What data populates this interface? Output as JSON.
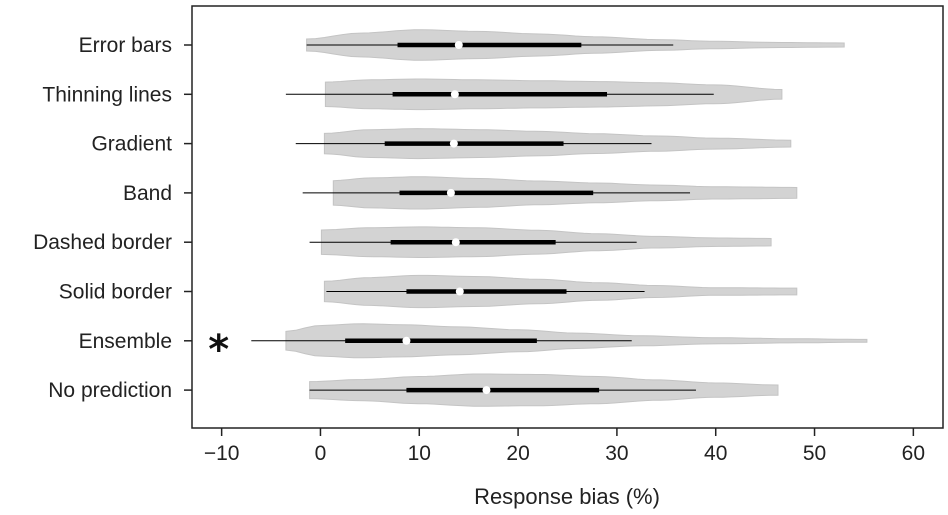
{
  "chart_data": {
    "type": "violin",
    "xlabel": "Response bias (%)",
    "xlim": [
      -13,
      63
    ],
    "xticks": [
      -10,
      0,
      10,
      20,
      30,
      40,
      50,
      60
    ],
    "grid": false,
    "colors": {
      "violin": "#d3d3d3",
      "box": "#000000",
      "median": "#ffffff"
    },
    "categories": [
      {
        "name": "Error bars",
        "min": -1.4,
        "max": 53,
        "whisker_low": -1.4,
        "q1": 7.8,
        "median": 14,
        "q3": 26.4,
        "whisker_high": 35.7,
        "profile": [
          [
            -1.4,
            0.35
          ],
          [
            4,
            0.7
          ],
          [
            10,
            0.9
          ],
          [
            16,
            0.8
          ],
          [
            22,
            0.65
          ],
          [
            28,
            0.48
          ],
          [
            34,
            0.32
          ],
          [
            40,
            0.22
          ],
          [
            46,
            0.15
          ],
          [
            53,
            0.12
          ]
        ]
      },
      {
        "name": "Thinning lines",
        "min": 0.5,
        "max": 46.7,
        "whisker_low": -3.5,
        "q1": 7.3,
        "median": 13.6,
        "q3": 29,
        "whisker_high": 39.8,
        "profile": [
          [
            0.5,
            0.72
          ],
          [
            5,
            0.85
          ],
          [
            10,
            0.9
          ],
          [
            16,
            0.85
          ],
          [
            22,
            0.8
          ],
          [
            28,
            0.75
          ],
          [
            34,
            0.68
          ],
          [
            40,
            0.55
          ],
          [
            46.7,
            0.28
          ]
        ]
      },
      {
        "name": "Gradient",
        "min": 0.4,
        "max": 47.6,
        "whisker_low": -2.5,
        "q1": 6.5,
        "median": 13.5,
        "q3": 24.6,
        "whisker_high": 33.5,
        "profile": [
          [
            0.4,
            0.6
          ],
          [
            5,
            0.82
          ],
          [
            10,
            0.88
          ],
          [
            16,
            0.82
          ],
          [
            22,
            0.72
          ],
          [
            28,
            0.58
          ],
          [
            34,
            0.45
          ],
          [
            40,
            0.32
          ],
          [
            47.6,
            0.2
          ]
        ]
      },
      {
        "name": "Band",
        "min": 1.3,
        "max": 48.2,
        "whisker_low": -1.8,
        "q1": 8,
        "median": 13.2,
        "q3": 27.6,
        "whisker_high": 37.4,
        "profile": [
          [
            1.3,
            0.72
          ],
          [
            5,
            0.88
          ],
          [
            10,
            0.95
          ],
          [
            16,
            0.85
          ],
          [
            22,
            0.7
          ],
          [
            28,
            0.58
          ],
          [
            34,
            0.46
          ],
          [
            40,
            0.36
          ],
          [
            48.2,
            0.32
          ]
        ]
      },
      {
        "name": "Dashed border",
        "min": 0.1,
        "max": 45.6,
        "whisker_low": -1.1,
        "q1": 7.1,
        "median": 13.7,
        "q3": 23.8,
        "whisker_high": 32,
        "profile": [
          [
            0.1,
            0.72
          ],
          [
            5,
            0.85
          ],
          [
            10,
            0.9
          ],
          [
            16,
            0.85
          ],
          [
            22,
            0.7
          ],
          [
            28,
            0.5
          ],
          [
            34,
            0.34
          ],
          [
            40,
            0.25
          ],
          [
            45.6,
            0.22
          ]
        ]
      },
      {
        "name": "Solid border",
        "min": 0.4,
        "max": 48.2,
        "whisker_low": 0.6,
        "q1": 8.7,
        "median": 14.1,
        "q3": 24.9,
        "whisker_high": 32.8,
        "profile": [
          [
            0.4,
            0.6
          ],
          [
            5,
            0.82
          ],
          [
            10,
            0.95
          ],
          [
            16,
            0.88
          ],
          [
            22,
            0.72
          ],
          [
            28,
            0.52
          ],
          [
            34,
            0.35
          ],
          [
            40,
            0.22
          ],
          [
            48.2,
            0.2
          ]
        ]
      },
      {
        "name": "Ensemble",
        "min": -3.5,
        "max": 55.3,
        "whisker_low": -7,
        "q1": 2.5,
        "median": 8.7,
        "q3": 21.9,
        "whisker_high": 31.5,
        "profile": [
          [
            -3.5,
            0.55
          ],
          [
            0,
            0.9
          ],
          [
            4,
            1.0
          ],
          [
            8,
            0.95
          ],
          [
            14,
            0.82
          ],
          [
            20,
            0.65
          ],
          [
            26,
            0.45
          ],
          [
            32,
            0.3
          ],
          [
            40,
            0.18
          ],
          [
            48,
            0.12
          ],
          [
            55.3,
            0.08
          ]
        ]
      },
      {
        "name": "No prediction",
        "min": -1.1,
        "max": 46.3,
        "whisker_low": -1.1,
        "q1": 8.7,
        "median": 16.8,
        "q3": 28.2,
        "whisker_high": 38,
        "profile": [
          [
            -1.1,
            0.5
          ],
          [
            4,
            0.62
          ],
          [
            10,
            0.8
          ],
          [
            16,
            0.95
          ],
          [
            22,
            0.92
          ],
          [
            28,
            0.8
          ],
          [
            34,
            0.6
          ],
          [
            40,
            0.42
          ],
          [
            46.3,
            0.3
          ]
        ]
      }
    ],
    "annotations": [
      {
        "text": "*",
        "category": "Ensemble",
        "x": -10.3
      }
    ]
  }
}
